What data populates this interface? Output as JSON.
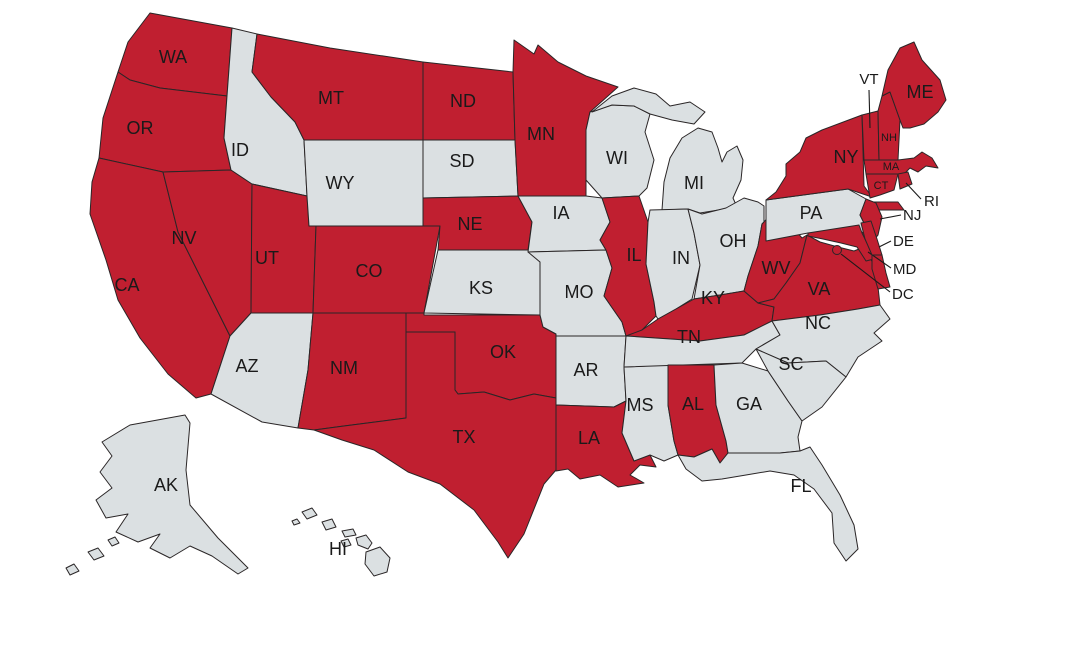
{
  "map": {
    "description": "US states map with selected states highlighted",
    "colors": {
      "highlighted": "#c01f30",
      "default": "#dbe0e2",
      "outline": "#2a2627",
      "label": "#1a1a1a",
      "background": "#ffffff"
    }
  },
  "states": [
    {
      "id": "WA",
      "label": "WA",
      "highlighted": true
    },
    {
      "id": "OR",
      "label": "OR",
      "highlighted": true
    },
    {
      "id": "CA",
      "label": "CA",
      "highlighted": true
    },
    {
      "id": "NV",
      "label": "NV",
      "highlighted": true
    },
    {
      "id": "ID",
      "label": "ID",
      "highlighted": false
    },
    {
      "id": "UT",
      "label": "UT",
      "highlighted": true
    },
    {
      "id": "AZ",
      "label": "AZ",
      "highlighted": false
    },
    {
      "id": "MT",
      "label": "MT",
      "highlighted": true
    },
    {
      "id": "WY",
      "label": "WY",
      "highlighted": false
    },
    {
      "id": "CO",
      "label": "CO",
      "highlighted": true
    },
    {
      "id": "NM",
      "label": "NM",
      "highlighted": true
    },
    {
      "id": "ND",
      "label": "ND",
      "highlighted": true
    },
    {
      "id": "SD",
      "label": "SD",
      "highlighted": false
    },
    {
      "id": "NE",
      "label": "NE",
      "highlighted": true
    },
    {
      "id": "KS",
      "label": "KS",
      "highlighted": false
    },
    {
      "id": "OK",
      "label": "OK",
      "highlighted": true
    },
    {
      "id": "TX",
      "label": "TX",
      "highlighted": true
    },
    {
      "id": "MN",
      "label": "MN",
      "highlighted": true
    },
    {
      "id": "IA",
      "label": "IA",
      "highlighted": false
    },
    {
      "id": "MO",
      "label": "MO",
      "highlighted": false
    },
    {
      "id": "AR",
      "label": "AR",
      "highlighted": false
    },
    {
      "id": "LA",
      "label": "LA",
      "highlighted": true
    },
    {
      "id": "WI",
      "label": "WI",
      "highlighted": false
    },
    {
      "id": "IL",
      "label": "IL",
      "highlighted": true
    },
    {
      "id": "MS",
      "label": "MS",
      "highlighted": false
    },
    {
      "id": "MI",
      "label": "MI",
      "highlighted": false
    },
    {
      "id": "IN",
      "label": "IN",
      "highlighted": false
    },
    {
      "id": "OH",
      "label": "OH",
      "highlighted": false
    },
    {
      "id": "KY",
      "label": "KY",
      "highlighted": true
    },
    {
      "id": "TN",
      "label": "TN",
      "highlighted": false
    },
    {
      "id": "AL",
      "label": "AL",
      "highlighted": true
    },
    {
      "id": "GA",
      "label": "GA",
      "highlighted": false
    },
    {
      "id": "WV",
      "label": "WV",
      "highlighted": true
    },
    {
      "id": "VA",
      "label": "VA",
      "highlighted": true
    },
    {
      "id": "NC",
      "label": "NC",
      "highlighted": false
    },
    {
      "id": "SC",
      "label": "SC",
      "highlighted": false
    },
    {
      "id": "FL",
      "label": "FL",
      "highlighted": false
    },
    {
      "id": "PA",
      "label": "PA",
      "highlighted": false
    },
    {
      "id": "NY",
      "label": "NY",
      "highlighted": true
    },
    {
      "id": "NJ",
      "label": "NJ",
      "highlighted": true
    },
    {
      "id": "VT",
      "label": "VT",
      "highlighted": true
    },
    {
      "id": "NH",
      "label": "NH",
      "highlighted": true
    },
    {
      "id": "ME",
      "label": "ME",
      "highlighted": true
    },
    {
      "id": "MA",
      "label": "MA",
      "highlighted": true
    },
    {
      "id": "CT",
      "label": "CT",
      "highlighted": true
    },
    {
      "id": "RI",
      "label": "RI",
      "highlighted": true
    },
    {
      "id": "MD",
      "label": "MD",
      "highlighted": true
    },
    {
      "id": "DE",
      "label": "DE",
      "highlighted": true
    },
    {
      "id": "DC",
      "label": "DC",
      "highlighted": true
    },
    {
      "id": "AK",
      "label": "AK",
      "highlighted": false
    },
    {
      "id": "HI",
      "label": "HI",
      "highlighted": false
    }
  ]
}
